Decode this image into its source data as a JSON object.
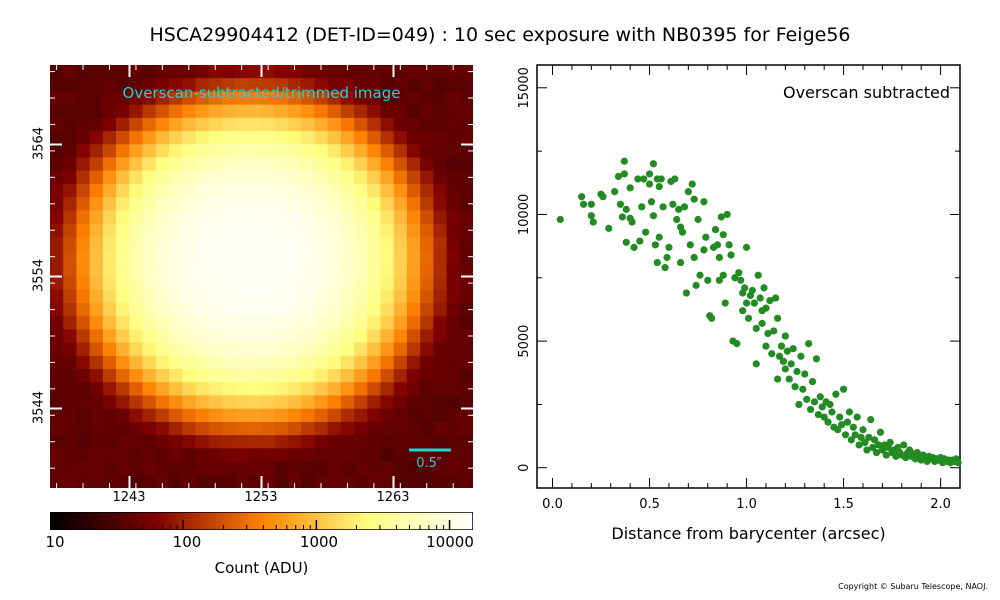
{
  "title": "HSCA29904412 (DET-ID=049) :  10 sec exposure with NB0395 for Feige56",
  "image_panel": {
    "label": "Overscan-subtracted/trimmed image",
    "scale_bar_label": "0.5″",
    "x_ticks": [
      "1243",
      "1253",
      "1263"
    ],
    "y_ticks": [
      "3564",
      "3554",
      "3544"
    ],
    "colormap": "afmhot",
    "colorbar": {
      "ticks": [
        "10",
        "100",
        "1000",
        "10000"
      ],
      "label": "Count (ADU)",
      "scale": "log",
      "range": [
        10,
        15000
      ]
    },
    "label_color": "#22d3d3"
  },
  "copyright": "Copyright © Subaru Telescope, NAOJ.",
  "chart_data": {
    "type": "scatter",
    "annotation": "Overscan subtracted",
    "xlabel": "Distance from barycenter (arcsec)",
    "ylabel": "",
    "xlim": [
      -0.08,
      2.1
    ],
    "ylim": [
      -800,
      15900
    ],
    "x_ticks": [
      "0.0",
      "0.5",
      "1.0",
      "1.5",
      "2.0"
    ],
    "y_ticks": [
      "0",
      "5000",
      "10000",
      "15000"
    ],
    "marker_color": "#228b22",
    "grid": false,
    "series": [
      {
        "points": [
          [
            0.04,
            9800
          ],
          [
            0.15,
            10700
          ],
          [
            0.16,
            10400
          ],
          [
            0.2,
            10400
          ],
          [
            0.2,
            9950
          ],
          [
            0.21,
            9700
          ],
          [
            0.25,
            10800
          ],
          [
            0.26,
            10700
          ],
          [
            0.29,
            9450
          ],
          [
            0.32,
            10900
          ],
          [
            0.34,
            11500
          ],
          [
            0.35,
            10400
          ],
          [
            0.36,
            9900
          ],
          [
            0.37,
            12100
          ],
          [
            0.37,
            11600
          ],
          [
            0.38,
            10200
          ],
          [
            0.38,
            8900
          ],
          [
            0.4,
            9850
          ],
          [
            0.4,
            11050
          ],
          [
            0.41,
            9700
          ],
          [
            0.42,
            8700
          ],
          [
            0.44,
            11400
          ],
          [
            0.45,
            8950
          ],
          [
            0.46,
            10300
          ],
          [
            0.47,
            11400
          ],
          [
            0.48,
            9300
          ],
          [
            0.5,
            11600
          ],
          [
            0.5,
            11200
          ],
          [
            0.51,
            10500
          ],
          [
            0.52,
            9950
          ],
          [
            0.52,
            12000
          ],
          [
            0.53,
            8800
          ],
          [
            0.54,
            11400
          ],
          [
            0.54,
            8100
          ],
          [
            0.55,
            11100
          ],
          [
            0.55,
            9100
          ],
          [
            0.56,
            11400
          ],
          [
            0.57,
            10300
          ],
          [
            0.58,
            7900
          ],
          [
            0.59,
            8300
          ],
          [
            0.6,
            8700
          ],
          [
            0.61,
            11300
          ],
          [
            0.62,
            10400
          ],
          [
            0.63,
            11400
          ],
          [
            0.64,
            9800
          ],
          [
            0.65,
            10200
          ],
          [
            0.66,
            9500
          ],
          [
            0.66,
            8100
          ],
          [
            0.67,
            9300
          ],
          [
            0.68,
            10300
          ],
          [
            0.69,
            6900
          ],
          [
            0.7,
            10900
          ],
          [
            0.71,
            8800
          ],
          [
            0.72,
            11200
          ],
          [
            0.73,
            10600
          ],
          [
            0.73,
            8300
          ],
          [
            0.74,
            7200
          ],
          [
            0.75,
            9800
          ],
          [
            0.76,
            7600
          ],
          [
            0.78,
            10500
          ],
          [
            0.78,
            8600
          ],
          [
            0.79,
            9100
          ],
          [
            0.8,
            7400
          ],
          [
            0.81,
            6000
          ],
          [
            0.82,
            5900
          ],
          [
            0.83,
            8700
          ],
          [
            0.84,
            9400
          ],
          [
            0.85,
            8800
          ],
          [
            0.86,
            7400
          ],
          [
            0.86,
            8300
          ],
          [
            0.87,
            9900
          ],
          [
            0.88,
            9200
          ],
          [
            0.88,
            7600
          ],
          [
            0.89,
            6500
          ],
          [
            0.9,
            10000
          ],
          [
            0.91,
            8800
          ],
          [
            0.92,
            8400
          ],
          [
            0.93,
            5000
          ],
          [
            0.94,
            7500
          ],
          [
            0.95,
            4900
          ],
          [
            0.96,
            7700
          ],
          [
            0.97,
            7400
          ],
          [
            0.98,
            6900
          ],
          [
            0.98,
            6200
          ],
          [
            0.99,
            7100
          ],
          [
            1.0,
            8700
          ],
          [
            1.0,
            6500
          ],
          [
            1.01,
            5900
          ],
          [
            1.02,
            6800
          ],
          [
            1.03,
            7000
          ],
          [
            1.04,
            6500
          ],
          [
            1.05,
            5500
          ],
          [
            1.05,
            4100
          ],
          [
            1.06,
            7600
          ],
          [
            1.07,
            6700
          ],
          [
            1.08,
            6200
          ],
          [
            1.08,
            5700
          ],
          [
            1.09,
            7100
          ],
          [
            1.1,
            4800
          ],
          [
            1.1,
            6300
          ],
          [
            1.11,
            5300
          ],
          [
            1.12,
            6600
          ],
          [
            1.13,
            4500
          ],
          [
            1.14,
            5400
          ],
          [
            1.15,
            6700
          ],
          [
            1.16,
            3500
          ],
          [
            1.16,
            5900
          ],
          [
            1.17,
            4400
          ],
          [
            1.18,
            4800
          ],
          [
            1.19,
            4200
          ],
          [
            1.2,
            3900
          ],
          [
            1.2,
            5200
          ],
          [
            1.21,
            4600
          ],
          [
            1.22,
            3500
          ],
          [
            1.23,
            4100
          ],
          [
            1.24,
            4700
          ],
          [
            1.25,
            3200
          ],
          [
            1.26,
            3800
          ],
          [
            1.27,
            2500
          ],
          [
            1.28,
            4400
          ],
          [
            1.29,
            3100
          ],
          [
            1.3,
            3700
          ],
          [
            1.31,
            2700
          ],
          [
            1.32,
            4900
          ],
          [
            1.33,
            2300
          ],
          [
            1.34,
            3400
          ],
          [
            1.35,
            2600
          ],
          [
            1.36,
            4300
          ],
          [
            1.37,
            2100
          ],
          [
            1.38,
            2800
          ],
          [
            1.39,
            2400
          ],
          [
            1.4,
            2000
          ],
          [
            1.41,
            2600
          ],
          [
            1.42,
            1800
          ],
          [
            1.43,
            2500
          ],
          [
            1.44,
            2200
          ],
          [
            1.45,
            1600
          ],
          [
            1.46,
            2900
          ],
          [
            1.47,
            1500
          ],
          [
            1.48,
            2000
          ],
          [
            1.49,
            1700
          ],
          [
            1.5,
            3100
          ],
          [
            1.51,
            1300
          ],
          [
            1.52,
            1800
          ],
          [
            1.53,
            2200
          ],
          [
            1.54,
            1100
          ],
          [
            1.55,
            1600
          ],
          [
            1.56,
            1300
          ],
          [
            1.57,
            2000
          ],
          [
            1.58,
            900
          ],
          [
            1.59,
            1200
          ],
          [
            1.6,
            1500
          ],
          [
            1.61,
            1000
          ],
          [
            1.62,
            700
          ],
          [
            1.63,
            1200
          ],
          [
            1.64,
            1900
          ],
          [
            1.65,
            800
          ],
          [
            1.66,
            1100
          ],
          [
            1.67,
            600
          ],
          [
            1.68,
            900
          ],
          [
            1.69,
            1400
          ],
          [
            1.7,
            700
          ],
          [
            1.71,
            900
          ],
          [
            1.72,
            500
          ],
          [
            1.73,
            800
          ],
          [
            1.74,
            1000
          ],
          [
            1.75,
            600
          ],
          [
            1.76,
            700
          ],
          [
            1.77,
            450
          ],
          [
            1.78,
            800
          ],
          [
            1.79,
            600
          ],
          [
            1.8,
            500
          ],
          [
            1.81,
            900
          ],
          [
            1.82,
            400
          ],
          [
            1.83,
            600
          ],
          [
            1.84,
            700
          ],
          [
            1.85,
            450
          ],
          [
            1.86,
            550
          ],
          [
            1.87,
            350
          ],
          [
            1.88,
            600
          ],
          [
            1.89,
            450
          ],
          [
            1.9,
            300
          ],
          [
            1.91,
            500
          ],
          [
            1.92,
            400
          ],
          [
            1.93,
            250
          ],
          [
            1.94,
            450
          ],
          [
            1.95,
            350
          ],
          [
            1.96,
            400
          ],
          [
            1.97,
            250
          ],
          [
            1.98,
            350
          ],
          [
            1.99,
            300
          ],
          [
            2.0,
            400
          ],
          [
            2.01,
            200
          ],
          [
            2.02,
            350
          ],
          [
            2.03,
            250
          ],
          [
            2.04,
            300
          ],
          [
            2.05,
            200
          ],
          [
            2.06,
            300
          ],
          [
            2.07,
            250
          ],
          [
            2.08,
            350
          ],
          [
            2.09,
            200
          ]
        ]
      }
    ]
  }
}
